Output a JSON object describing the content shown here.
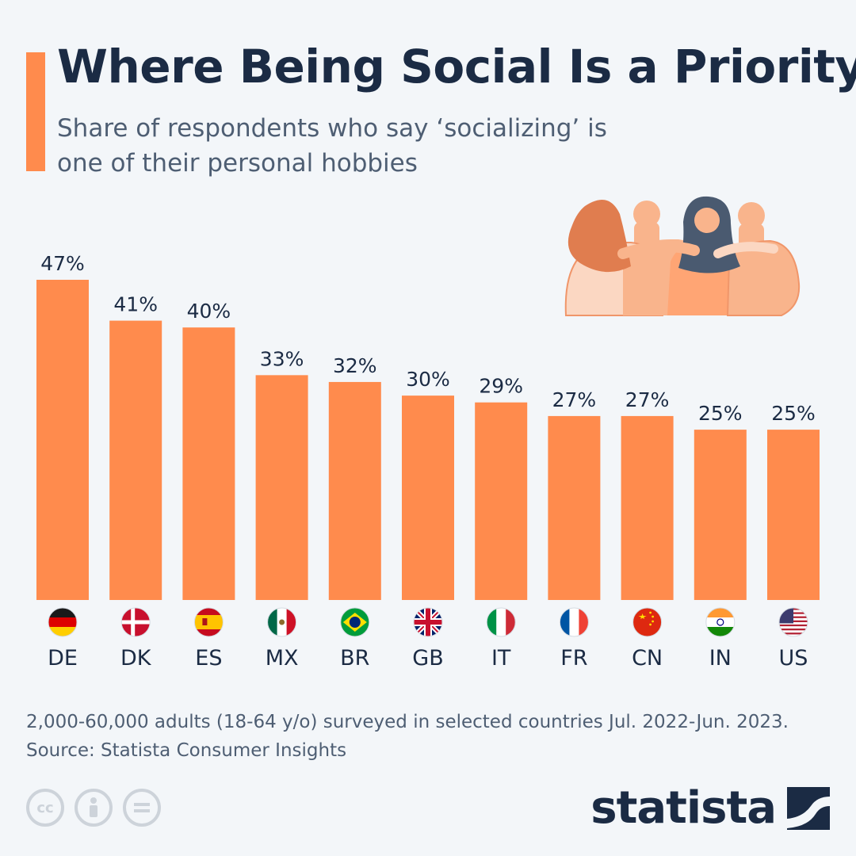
{
  "header": {
    "title": "Where Being Social Is a Priority",
    "subtitle": "Share of respondents who say ‘socializing’ is one of their personal hobbies"
  },
  "chart_data": {
    "type": "bar",
    "categories": [
      "DE",
      "DK",
      "ES",
      "MX",
      "BR",
      "GB",
      "IT",
      "FR",
      "CN",
      "IN",
      "US"
    ],
    "values": [
      47,
      41,
      40,
      33,
      32,
      30,
      29,
      27,
      27,
      25,
      25
    ],
    "value_labels": [
      "47%",
      "41%",
      "40%",
      "33%",
      "32%",
      "30%",
      "29%",
      "27%",
      "27%",
      "25%",
      "25%"
    ],
    "flags": [
      "flag-germany",
      "flag-denmark",
      "flag-spain",
      "flag-mexico",
      "flag-brazil",
      "flag-uk",
      "flag-italy",
      "flag-france",
      "flag-china",
      "flag-india",
      "flag-usa"
    ],
    "ylim": [
      0,
      47
    ],
    "title": "Where Being Social Is a Priority",
    "xlabel": "",
    "ylabel": "",
    "bar_color": "#ff8b4d"
  },
  "footer": {
    "note": "2,000-60,000 adults (18-64 y/o) surveyed in selected countries Jul. 2022-Jun. 2023.",
    "source": "Source: Statista Consumer Insights",
    "brand": "statista",
    "license_icons": [
      "cc-icon",
      "attribution-icon",
      "no-derivatives-icon"
    ]
  },
  "illustration": {
    "icon": "friends-group-icon"
  },
  "colors": {
    "accent": "#ff8b4d",
    "title": "#1b2b44",
    "text": "#4e5e73",
    "background": "#f3f6f9"
  }
}
